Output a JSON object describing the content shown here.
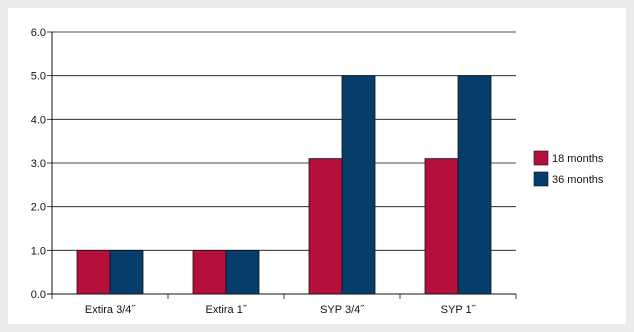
{
  "chart_data": {
    "type": "bar",
    "categories": [
      "Extira 3/4˝",
      "Extira 1˝",
      "SYP 3/4˝",
      "SYP 1˝"
    ],
    "series": [
      {
        "name": "18 months",
        "values": [
          1.0,
          1.0,
          3.1,
          3.1
        ],
        "color": "#b5103c"
      },
      {
        "name": "36 months",
        "values": [
          1.0,
          1.0,
          5.0,
          5.0
        ],
        "color": "#053e6b"
      }
    ],
    "yticks": [
      "0.0",
      "1.0",
      "2.0",
      "3.0",
      "4.0",
      "5.0",
      "6.0"
    ],
    "ylim": [
      0,
      6
    ],
    "grid": true,
    "legend_position": "right",
    "title": "",
    "xlabel": "",
    "ylabel": ""
  }
}
